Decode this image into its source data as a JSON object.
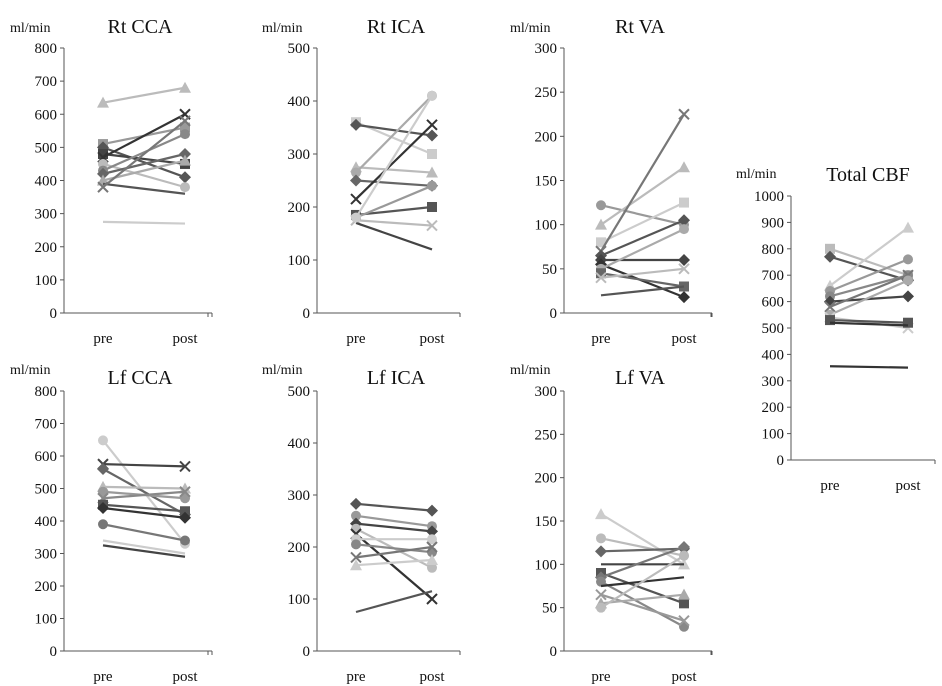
{
  "chart_data": [
    {
      "type": "line",
      "title": "Rt CCA",
      "ylabel": "ml/min",
      "categories": [
        "pre",
        "post"
      ],
      "ylim": [
        0,
        800
      ],
      "yticks": [
        0,
        100,
        200,
        300,
        400,
        500,
        600,
        700,
        800
      ],
      "series": [
        {
          "values": [
            635,
            680
          ],
          "color": "#bbbbbb",
          "marker": "triangle"
        },
        {
          "values": [
            275,
            270
          ],
          "color": "#cccccc",
          "marker": "none"
        },
        {
          "values": [
            510,
            560
          ],
          "color": "#999999",
          "marker": "square"
        },
        {
          "values": [
            500,
            410
          ],
          "color": "#555555",
          "marker": "diamond"
        },
        {
          "values": [
            480,
            450
          ],
          "color": "#444444",
          "marker": "square"
        },
        {
          "values": [
            470,
            600
          ],
          "color": "#333333",
          "marker": "x"
        },
        {
          "values": [
            450,
            380
          ],
          "color": "#bbbbbb",
          "marker": "circle"
        },
        {
          "values": [
            430,
            540
          ],
          "color": "#888888",
          "marker": "circle"
        },
        {
          "values": [
            420,
            480
          ],
          "color": "#666666",
          "marker": "diamond"
        },
        {
          "values": [
            400,
            460
          ],
          "color": "#aaaaaa",
          "marker": "triangle"
        },
        {
          "values": [
            390,
            360
          ],
          "color": "#555555",
          "marker": "none"
        },
        {
          "values": [
            380,
            580
          ],
          "color": "#777777",
          "marker": "x"
        }
      ]
    },
    {
      "type": "line",
      "title": "Rt ICA",
      "ylabel": "ml/min",
      "categories": [
        "pre",
        "post"
      ],
      "ylim": [
        0,
        500
      ],
      "yticks": [
        0,
        100,
        200,
        300,
        400,
        500
      ],
      "series": [
        {
          "values": [
            360,
            300
          ],
          "color": "#cccccc",
          "marker": "square"
        },
        {
          "values": [
            355,
            335
          ],
          "color": "#555555",
          "marker": "diamond"
        },
        {
          "values": [
            275,
            265
          ],
          "color": "#bbbbbb",
          "marker": "triangle"
        },
        {
          "values": [
            265,
            410
          ],
          "color": "#aaaaaa",
          "marker": "circle"
        },
        {
          "values": [
            250,
            240
          ],
          "color": "#666666",
          "marker": "diamond"
        },
        {
          "values": [
            215,
            355
          ],
          "color": "#333333",
          "marker": "x"
        },
        {
          "values": [
            185,
            200
          ],
          "color": "#555555",
          "marker": "square"
        },
        {
          "values": [
            180,
            240
          ],
          "color": "#999999",
          "marker": "circle"
        },
        {
          "values": [
            175,
            165
          ],
          "color": "#bbbbbb",
          "marker": "x"
        },
        {
          "values": [
            170,
            120
          ],
          "color": "#444444",
          "marker": "none"
        },
        {
          "values": [
            180,
            410
          ],
          "color": "#cccccc",
          "marker": "circle"
        }
      ]
    },
    {
      "type": "line",
      "title": "Rt VA",
      "ylabel": "ml/min",
      "categories": [
        "pre",
        "post"
      ],
      "ylim": [
        0,
        300
      ],
      "yticks": [
        0,
        50,
        100,
        150,
        200,
        250,
        300
      ],
      "series": [
        {
          "values": [
            122,
            100
          ],
          "color": "#999999",
          "marker": "circle"
        },
        {
          "values": [
            100,
            165
          ],
          "color": "#bbbbbb",
          "marker": "triangle"
        },
        {
          "values": [
            80,
            125
          ],
          "color": "#cccccc",
          "marker": "square"
        },
        {
          "values": [
            70,
            225
          ],
          "color": "#777777",
          "marker": "x"
        },
        {
          "values": [
            65,
            105
          ],
          "color": "#555555",
          "marker": "diamond"
        },
        {
          "values": [
            60,
            60
          ],
          "color": "#444444",
          "marker": "diamond"
        },
        {
          "values": [
            55,
            18
          ],
          "color": "#333333",
          "marker": "diamond"
        },
        {
          "values": [
            50,
            95
          ],
          "color": "#aaaaaa",
          "marker": "circle"
        },
        {
          "values": [
            45,
            30
          ],
          "color": "#666666",
          "marker": "square"
        },
        {
          "values": [
            40,
            50
          ],
          "color": "#bbbbbb",
          "marker": "x"
        },
        {
          "values": [
            20,
            30
          ],
          "color": "#555555",
          "marker": "none"
        }
      ]
    },
    {
      "type": "line",
      "title": "Total CBF",
      "ylabel": "ml/min",
      "categories": [
        "pre",
        "post"
      ],
      "ylim": [
        0,
        1000
      ],
      "yticks": [
        0,
        100,
        200,
        300,
        400,
        500,
        600,
        700,
        800,
        900,
        1000
      ],
      "series": [
        {
          "values": [
            800,
            700
          ],
          "color": "#bbbbbb",
          "marker": "square"
        },
        {
          "values": [
            770,
            680
          ],
          "color": "#555555",
          "marker": "diamond"
        },
        {
          "values": [
            660,
            880
          ],
          "color": "#cccccc",
          "marker": "triangle"
        },
        {
          "values": [
            640,
            760
          ],
          "color": "#999999",
          "marker": "circle"
        },
        {
          "values": [
            620,
            700
          ],
          "color": "#888888",
          "marker": "circle"
        },
        {
          "values": [
            600,
            620
          ],
          "color": "#444444",
          "marker": "diamond"
        },
        {
          "values": [
            580,
            700
          ],
          "color": "#777777",
          "marker": "x"
        },
        {
          "values": [
            550,
            680
          ],
          "color": "#aaaaaa",
          "marker": "circle"
        },
        {
          "values": [
            540,
            500
          ],
          "color": "#cccccc",
          "marker": "x"
        },
        {
          "values": [
            530,
            520
          ],
          "color": "#555555",
          "marker": "square"
        },
        {
          "values": [
            520,
            510
          ],
          "color": "#333333",
          "marker": "none"
        },
        {
          "values": [
            355,
            350
          ],
          "color": "#333333",
          "marker": "none"
        }
      ]
    },
    {
      "type": "line",
      "title": "Lf CCA",
      "ylabel": "ml/min",
      "categories": [
        "pre",
        "post"
      ],
      "ylim": [
        0,
        800
      ],
      "yticks": [
        0,
        100,
        200,
        300,
        400,
        500,
        600,
        700,
        800
      ],
      "series": [
        {
          "values": [
            648,
            330
          ],
          "color": "#cccccc",
          "marker": "circle"
        },
        {
          "values": [
            575,
            568
          ],
          "color": "#444444",
          "marker": "x"
        },
        {
          "values": [
            560,
            420
          ],
          "color": "#666666",
          "marker": "diamond"
        },
        {
          "values": [
            505,
            500
          ],
          "color": "#bbbbbb",
          "marker": "triangle"
        },
        {
          "values": [
            490,
            470
          ],
          "color": "#999999",
          "marker": "circle"
        },
        {
          "values": [
            470,
            490
          ],
          "color": "#888888",
          "marker": "x"
        },
        {
          "values": [
            450,
            430
          ],
          "color": "#555555",
          "marker": "square"
        },
        {
          "values": [
            440,
            410
          ],
          "color": "#333333",
          "marker": "diamond"
        },
        {
          "values": [
            390,
            340
          ],
          "color": "#777777",
          "marker": "circle"
        },
        {
          "values": [
            340,
            300
          ],
          "color": "#cccccc",
          "marker": "none"
        },
        {
          "values": [
            325,
            290
          ],
          "color": "#444444",
          "marker": "none"
        }
      ]
    },
    {
      "type": "line",
      "title": "Lf ICA",
      "ylabel": "ml/min",
      "categories": [
        "pre",
        "post"
      ],
      "ylim": [
        0,
        500
      ],
      "yticks": [
        0,
        100,
        200,
        300,
        400,
        500
      ],
      "series": [
        {
          "values": [
            283,
            270
          ],
          "color": "#555555",
          "marker": "diamond"
        },
        {
          "values": [
            260,
            240
          ],
          "color": "#999999",
          "marker": "circle"
        },
        {
          "values": [
            245,
            230
          ],
          "color": "#444444",
          "marker": "diamond"
        },
        {
          "values": [
            235,
            160
          ],
          "color": "#bbbbbb",
          "marker": "circle"
        },
        {
          "values": [
            225,
            100
          ],
          "color": "#333333",
          "marker": "x"
        },
        {
          "values": [
            215,
            215
          ],
          "color": "#cccccc",
          "marker": "circle"
        },
        {
          "values": [
            205,
            190
          ],
          "color": "#888888",
          "marker": "circle"
        },
        {
          "values": [
            180,
            200
          ],
          "color": "#777777",
          "marker": "x"
        },
        {
          "values": [
            165,
            175
          ],
          "color": "#cccccc",
          "marker": "triangle"
        },
        {
          "values": [
            75,
            115
          ],
          "color": "#555555",
          "marker": "none"
        }
      ]
    },
    {
      "type": "line",
      "title": "Lf VA",
      "ylabel": "ml/min",
      "categories": [
        "pre",
        "post"
      ],
      "ylim": [
        0,
        300
      ],
      "yticks": [
        0,
        50,
        100,
        150,
        200,
        250,
        300
      ],
      "series": [
        {
          "values": [
            158,
            100
          ],
          "color": "#cccccc",
          "marker": "triangle"
        },
        {
          "values": [
            130,
            110
          ],
          "color": "#bbbbbb",
          "marker": "circle"
        },
        {
          "values": [
            115,
            118
          ],
          "color": "#666666",
          "marker": "diamond"
        },
        {
          "values": [
            100,
            100
          ],
          "color": "#444444",
          "marker": "none"
        },
        {
          "values": [
            90,
            55
          ],
          "color": "#555555",
          "marker": "square"
        },
        {
          "values": [
            85,
            120
          ],
          "color": "#777777",
          "marker": "diamond"
        },
        {
          "values": [
            80,
            28
          ],
          "color": "#888888",
          "marker": "circle"
        },
        {
          "values": [
            75,
            85
          ],
          "color": "#333333",
          "marker": "none"
        },
        {
          "values": [
            65,
            35
          ],
          "color": "#999999",
          "marker": "x"
        },
        {
          "values": [
            55,
            65
          ],
          "color": "#aaaaaa",
          "marker": "triangle"
        },
        {
          "values": [
            50,
            110
          ],
          "color": "#bbbbbb",
          "marker": "circle"
        }
      ]
    }
  ]
}
